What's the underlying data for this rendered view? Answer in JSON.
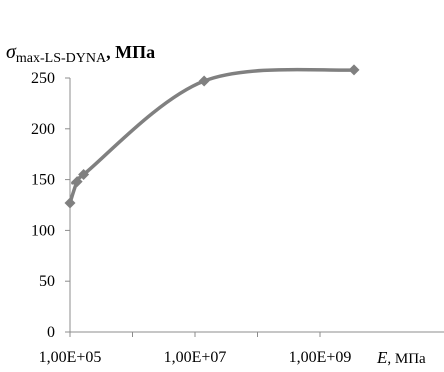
{
  "chart_data": {
    "type": "line",
    "xscale": "log",
    "ylabel": {
      "main": "σ",
      "sub": "max-LS-DYNA",
      "unit": ", МПа"
    },
    "xlabel": {
      "main": "E",
      "unit": ", МПа"
    },
    "ylim": [
      0,
      250
    ],
    "y_ticks": [
      0,
      50,
      100,
      150,
      200,
      250
    ],
    "x_ticks": [
      100000,
      10000000,
      1000000000
    ],
    "x_tick_labels": [
      "1,00E+05",
      "1,00E+07",
      "1,00E+09"
    ],
    "series": [
      {
        "color": "#808080",
        "marker": "diamond",
        "points": [
          {
            "x": 100000,
            "y": 127
          },
          {
            "x": 130000,
            "y": 148
          },
          {
            "x": 165000,
            "y": 155
          },
          {
            "x": 14000000,
            "y": 247
          },
          {
            "x": 3500000000,
            "y": 258
          }
        ]
      }
    ]
  }
}
